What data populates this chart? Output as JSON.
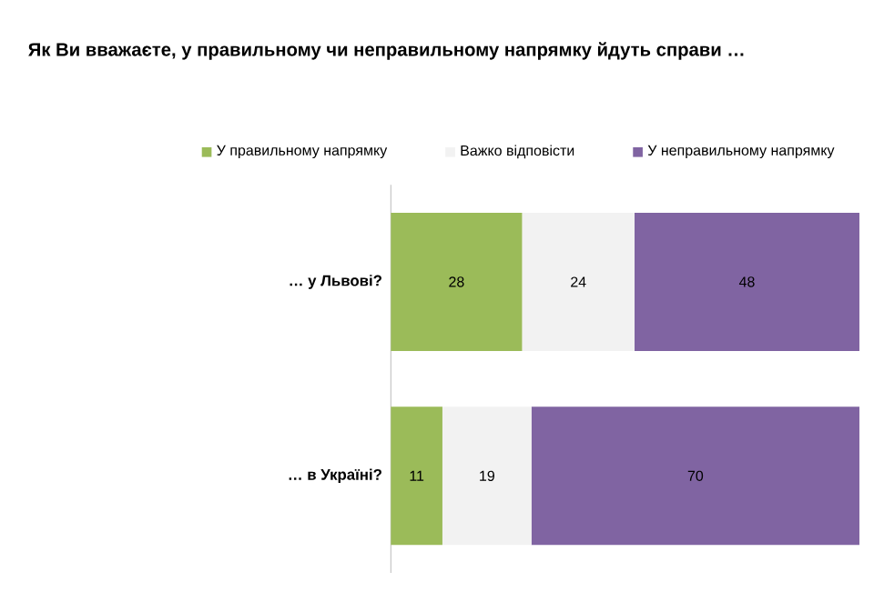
{
  "chart_data": {
    "type": "bar",
    "orientation": "horizontal",
    "stacked": true,
    "title": "Як Ви вважаєте, у правильному чи неправильному напрямку йдуть справи …",
    "categories": [
      "… у Львові?",
      "… в Україні?"
    ],
    "series": [
      {
        "name": "У правильному напрямку",
        "color": "#9bbb59",
        "values": [
          28,
          11
        ]
      },
      {
        "name": "Важко відповісти",
        "color": "#f2f2f2",
        "values": [
          24,
          19
        ]
      },
      {
        "name": "У неправильному напрямку",
        "color": "#8064a2",
        "values": [
          48,
          70
        ]
      }
    ],
    "tick_labels": "y",
    "data_labels": true,
    "legend": "top",
    "grid": false
  }
}
